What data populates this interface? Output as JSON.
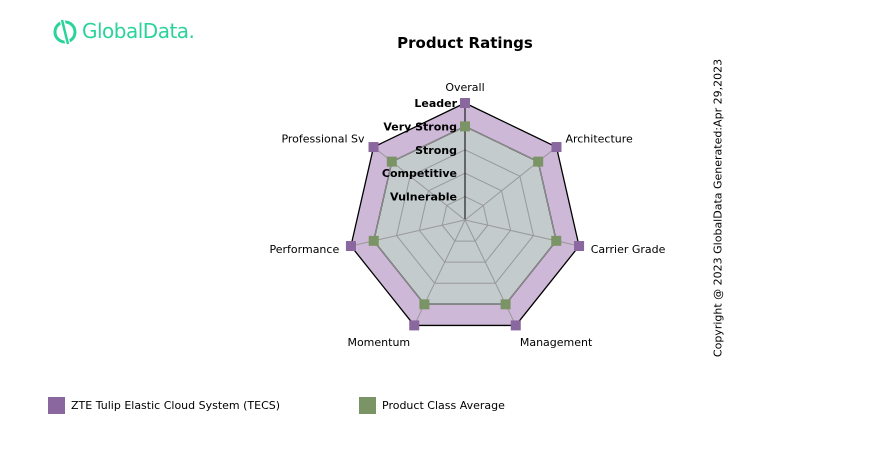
{
  "logo": {
    "text": "GlobalData."
  },
  "copyright": "Copyright @ 2023 GlobalData Generated:Apr 29,2023",
  "chart_data": {
    "type": "radar",
    "title": "Product Ratings",
    "axes": [
      "Overall",
      "Architecture",
      "Carrier Grade",
      "Management",
      "Momentum",
      "Performance",
      "Professional Sv"
    ],
    "levels": [
      "Vulnerable",
      "Competitive",
      "Strong",
      "Very Strong",
      "Leader"
    ],
    "range": [
      0,
      5
    ],
    "series": [
      {
        "name": "ZTE Tulip Elastic Cloud System (TECS)",
        "values": [
          5,
          5,
          5,
          5,
          5,
          5,
          5
        ],
        "color": "#8a679e",
        "fill": "#cdb8d8"
      },
      {
        "name": "Product Class Average",
        "values": [
          4,
          4,
          4,
          4,
          4,
          4,
          4
        ],
        "color": "#7b9466",
        "fill": "#c3cbcc"
      }
    ],
    "legend_position": "bottom"
  }
}
